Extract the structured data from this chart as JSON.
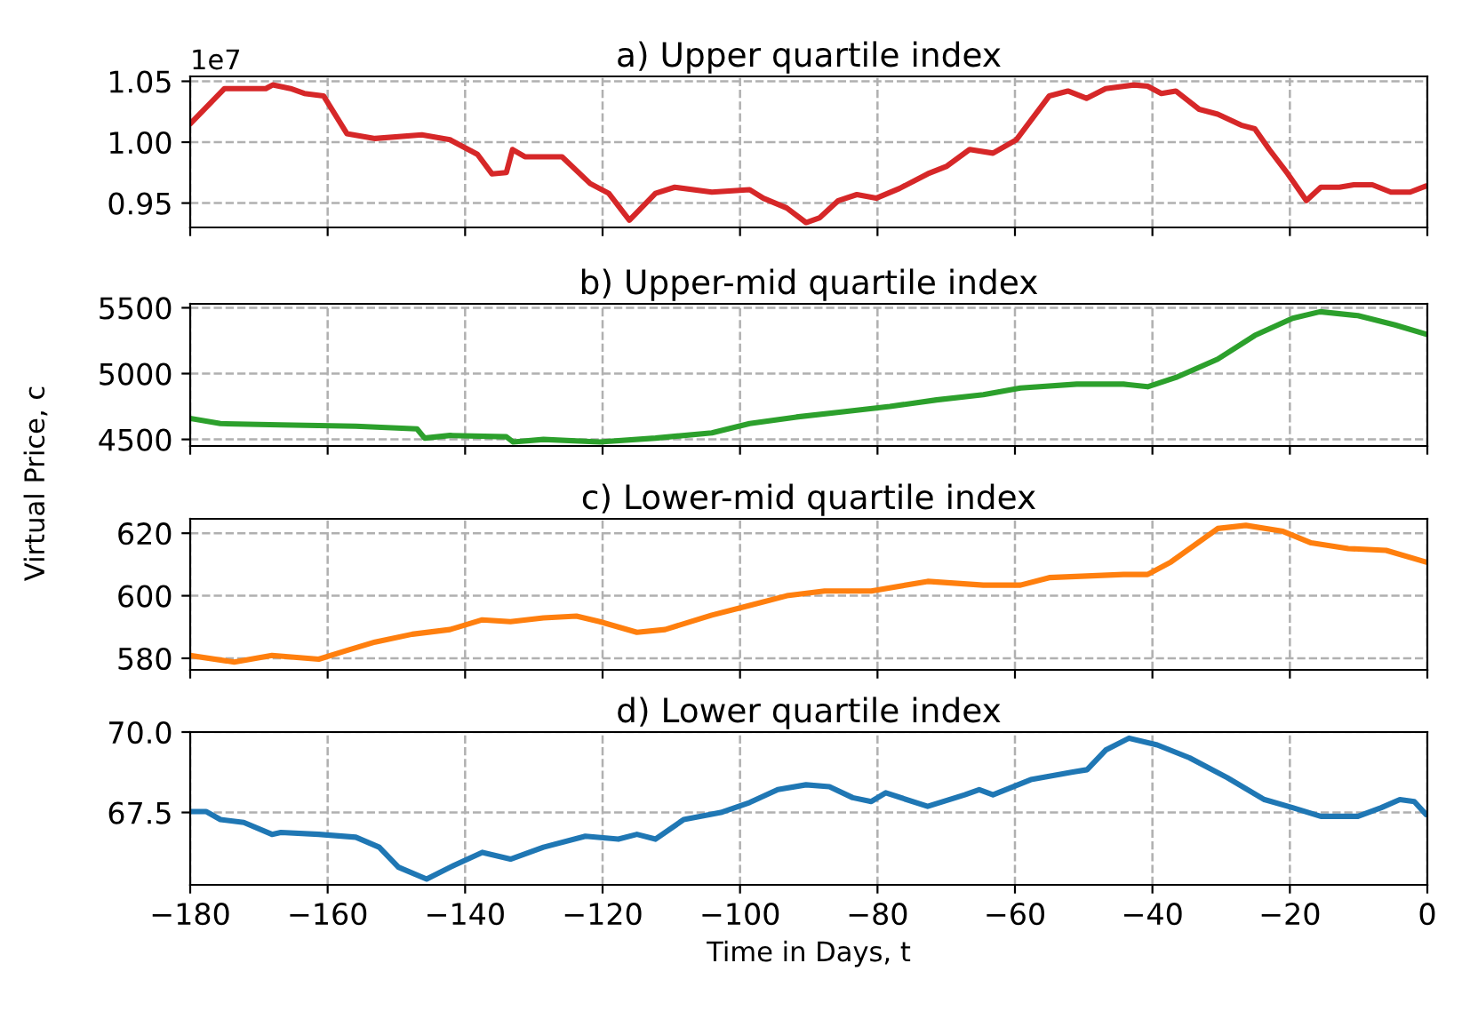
{
  "chart_data": [
    {
      "type": "line",
      "title": "a) Upper quartile index",
      "annotations": [
        "1e7"
      ],
      "x": [
        -180,
        -175,
        -169,
        -168,
        -165.4,
        -163.4,
        -160.6,
        -157.2,
        -153.1,
        -146.3,
        -142.2,
        -138.2,
        -136.1,
        -134,
        -133.1,
        -131.3,
        -125.9,
        -121.8,
        -119.1,
        -116.1,
        -112.3,
        -109.5,
        -104.1,
        -98.6,
        -96.6,
        -93.2,
        -90.4,
        -88.4,
        -85.7,
        -83,
        -80.2,
        -76.8,
        -72.7,
        -70,
        -66.6,
        -63.2,
        -59.8,
        -55,
        -52.3,
        -49.6,
        -46.8,
        -42.7,
        -40.7,
        -38.7,
        -36.6,
        -33.2,
        -30.5,
        -27.1,
        -25.1,
        -23,
        -20.3,
        -17.6,
        -15.5,
        -12.8,
        -10.7,
        -8,
        -5.3,
        -2.5,
        -0.2
      ],
      "series": [
        {
          "color": "#d62728",
          "values": [
            1.015,
            1.044,
            1.044,
            1.047,
            1.044,
            1.04,
            1.038,
            1.007,
            1.003,
            1.006,
            1.002,
            0.99,
            0.974,
            0.975,
            0.994,
            0.988,
            0.988,
            0.966,
            0.958,
            0.936,
            0.958,
            0.963,
            0.959,
            0.961,
            0.954,
            0.946,
            0.934,
            0.938,
            0.952,
            0.957,
            0.954,
            0.962,
            0.974,
            0.98,
            0.994,
            0.991,
            1.002,
            1.038,
            1.042,
            1.036,
            1.044,
            1.047,
            1.046,
            1.04,
            1.042,
            1.027,
            1.023,
            1.014,
            1.011,
            0.994,
            0.974,
            0.952,
            0.963,
            0.963,
            0.965,
            0.965,
            0.959,
            0.959,
            0.964
          ]
        }
      ],
      "xlim": [
        -180,
        0
      ],
      "xticks": [
        -180,
        -160,
        -140,
        -120,
        -100,
        -80,
        -60,
        -40,
        -20,
        0
      ],
      "ylim": [
        0.93,
        1.054
      ],
      "yticks": [
        {
          "value": 0.95,
          "label": "0.95"
        },
        {
          "value": 1.0,
          "label": "1.00"
        },
        {
          "value": 1.05,
          "label": "1.05"
        }
      ],
      "grid": true,
      "tick_labels": "y"
    },
    {
      "type": "line",
      "title": "b) Upper-mid quartile index",
      "x": [
        -180,
        -175.6,
        -166.8,
        -155.9,
        -147,
        -145.9,
        -142.2,
        -134,
        -133,
        -128.6,
        -120.4,
        -112.3,
        -104.1,
        -98.6,
        -91.8,
        -85,
        -78.2,
        -71.4,
        -64.6,
        -59.2,
        -51,
        -44.2,
        -40.7,
        -36.6,
        -30.5,
        -25.1,
        -19.6,
        -15.6,
        -10.1,
        -4.7,
        -0.2
      ],
      "series": [
        {
          "color": "#2ca02c",
          "values": [
            4660,
            4620,
            4610,
            4600,
            4580,
            4510,
            4530,
            4520,
            4480,
            4500,
            4480,
            4510,
            4550,
            4620,
            4670,
            4710,
            4750,
            4800,
            4840,
            4890,
            4920,
            4920,
            4900,
            4970,
            5110,
            5290,
            5420,
            5470,
            5440,
            5370,
            5300
          ]
        }
      ],
      "xlim": [
        -180,
        0
      ],
      "xticks": [
        -180,
        -160,
        -140,
        -120,
        -100,
        -80,
        -60,
        -40,
        -20,
        0
      ],
      "ylim": [
        4450,
        5530
      ],
      "yticks": [
        4500,
        5000,
        5500
      ],
      "grid": true,
      "tick_labels": "y"
    },
    {
      "type": "line",
      "title": "c) Lower-mid quartile index",
      "ylabel": "Virtual Price, c",
      "x": [
        -180,
        -173.6,
        -168.1,
        -161.3,
        -157.2,
        -153.1,
        -147.7,
        -142.2,
        -137.5,
        -133.4,
        -128.6,
        -123.8,
        -120.4,
        -115,
        -110.9,
        -104.1,
        -98.6,
        -93.2,
        -87.7,
        -80.9,
        -72.7,
        -64.6,
        -59.2,
        -55,
        -44.2,
        -40.7,
        -37.3,
        -30.5,
        -26.4,
        -21,
        -16.9,
        -11.5,
        -6,
        -0.2
      ],
      "series": [
        {
          "color": "#ff7f0e",
          "values": [
            580.9,
            578.8,
            580.9,
            579.7,
            582.5,
            585.2,
            587.7,
            589.2,
            592.3,
            591.7,
            592.9,
            593.5,
            591.7,
            588.3,
            589.2,
            593.8,
            596.9,
            600,
            601.5,
            601.5,
            604.6,
            603.4,
            603.4,
            605.8,
            606.8,
            606.8,
            610.8,
            621.5,
            622.5,
            620.6,
            616.9,
            615.1,
            614.5,
            610.8
          ]
        }
      ],
      "xlim": [
        -180,
        0
      ],
      "xticks": [
        -180,
        -160,
        -140,
        -120,
        -100,
        -80,
        -60,
        -40,
        -20,
        0
      ],
      "ylim": [
        576.3,
        624.6
      ],
      "yticks": [
        580,
        600,
        620
      ],
      "grid": true,
      "tick_labels": "y"
    },
    {
      "type": "line",
      "title": "d) Lower quartile index",
      "xlabel": "Time in Days, t",
      "x": [
        -180,
        -177.7,
        -175.6,
        -172.2,
        -168.1,
        -166.8,
        -161.3,
        -155.9,
        -152.5,
        -149.7,
        -145.6,
        -141.6,
        -137.5,
        -133.4,
        -128.6,
        -122.5,
        -117.7,
        -115,
        -112.3,
        -108.2,
        -102.8,
        -98.6,
        -94.5,
        -90.4,
        -87,
        -83.6,
        -80.9,
        -78.8,
        -72.7,
        -67.3,
        -65.2,
        -63.2,
        -57.7,
        -51.6,
        -49.5,
        -46.8,
        -43.4,
        -39.3,
        -34.6,
        -29.1,
        -23.7,
        -19.6,
        -15.5,
        -10.1,
        -6.7,
        -4,
        -1.9,
        -0.2
      ],
      "series": [
        {
          "color": "#1f77b4",
          "values": [
            67.53,
            67.53,
            67.28,
            67.19,
            66.82,
            66.88,
            66.82,
            66.73,
            66.42,
            65.8,
            65.43,
            65.86,
            66.26,
            66.05,
            66.42,
            66.76,
            66.67,
            66.82,
            66.67,
            67.28,
            67.5,
            67.81,
            68.21,
            68.36,
            68.3,
            67.96,
            67.84,
            68.11,
            67.69,
            68.05,
            68.21,
            68.05,
            68.52,
            68.76,
            68.83,
            69.44,
            69.81,
            69.6,
            69.2,
            68.58,
            67.9,
            67.65,
            67.38,
            67.38,
            67.65,
            67.9,
            67.84,
            67.44
          ]
        }
      ],
      "xlim": [
        -180,
        0
      ],
      "xticks": [
        {
          "value": -180,
          "label": "−180"
        },
        {
          "value": -160,
          "label": "−160"
        },
        {
          "value": -140,
          "label": "−140"
        },
        {
          "value": -120,
          "label": "−120"
        },
        {
          "value": -100,
          "label": "−100"
        },
        {
          "value": -80,
          "label": "−80"
        },
        {
          "value": -60,
          "label": "−60"
        },
        {
          "value": -40,
          "label": "−40"
        },
        {
          "value": -20,
          "label": "−20"
        },
        0
      ],
      "ylim": [
        65.25,
        70.0
      ],
      "yticks": [
        67.5,
        {
          "value": 70.0,
          "label": "70.0"
        }
      ],
      "grid": true
    }
  ]
}
